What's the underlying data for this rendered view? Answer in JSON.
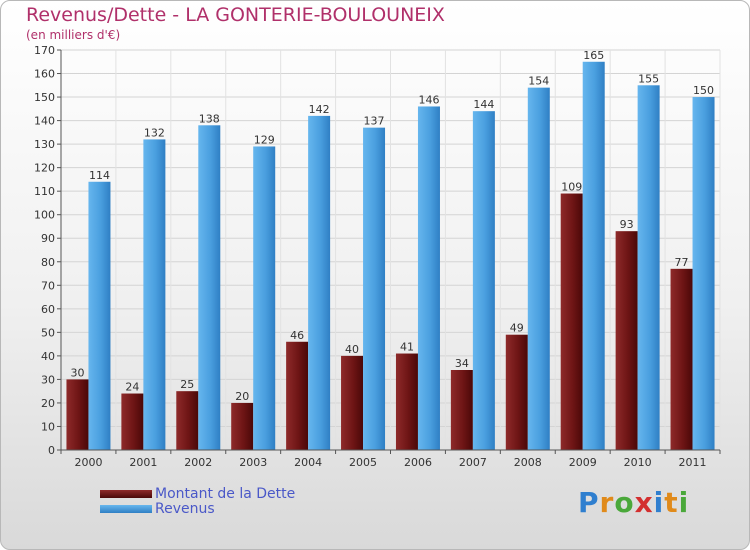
{
  "title": "Revenus/Dette - LA GONTERIE-BOULOUNEIX",
  "subtitle": "(en milliers d'€)",
  "colors": {
    "title": "#b0306a",
    "dette": "#7a1a1a",
    "revenus": "#4ea6e6",
    "legend_text": "#4a58c8"
  },
  "legend": {
    "dette_label": "Montant de la Dette",
    "revenus_label": "Revenus"
  },
  "logo": {
    "text": "Proxiti",
    "chars": [
      "P",
      "r",
      "o",
      "x",
      "i",
      "t",
      "i"
    ]
  },
  "chart_data": {
    "type": "bar",
    "title": "Revenus/Dette - LA GONTERIE-BOULOUNEIX",
    "subtitle": "(en milliers d'€)",
    "xlabel": "",
    "ylabel": "",
    "ylim": [
      0,
      170
    ],
    "yticks": [
      0,
      10,
      20,
      30,
      40,
      50,
      60,
      70,
      80,
      90,
      100,
      110,
      120,
      130,
      140,
      150,
      160,
      170
    ],
    "grid": true,
    "legend_position": "bottom-left",
    "categories": [
      "2000",
      "2001",
      "2002",
      "2003",
      "2004",
      "2005",
      "2006",
      "2007",
      "2008",
      "2009",
      "2010",
      "2011"
    ],
    "series": [
      {
        "name": "Montant de la Dette",
        "color": "#7a1a1a",
        "values": [
          30,
          24,
          25,
          20,
          46,
          40,
          41,
          34,
          49,
          109,
          93,
          77
        ]
      },
      {
        "name": "Revenus",
        "color": "#4ea6e6",
        "values": [
          114,
          132,
          138,
          129,
          142,
          137,
          146,
          144,
          154,
          165,
          155,
          150
        ]
      }
    ]
  }
}
